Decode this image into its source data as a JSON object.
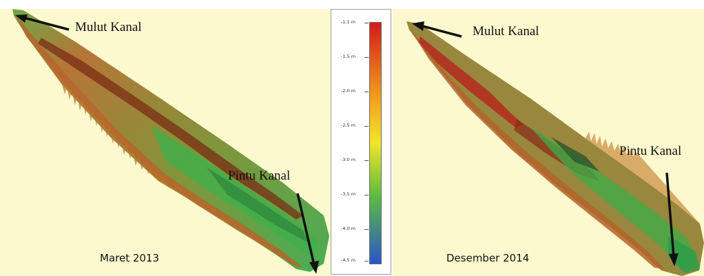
{
  "panels": {
    "left": {
      "mouth_label": "Mulut Kanal",
      "gate_label": "Pintu Kanal",
      "date_label": "Maret 2013"
    },
    "right": {
      "mouth_label": "Mulut Kanal",
      "gate_label": "Pintu Kanal",
      "date_label": "Desember 2014"
    }
  },
  "colorbar": {
    "ticks": [
      "-1.1 m",
      "-1.5 m",
      "-2.0 m",
      "-2.5 m",
      "-3.0 m",
      "-3.5 m",
      "-4.0 m",
      "-4.5 m"
    ],
    "colors": {
      "shallow": "#d21a1a",
      "mid_orange": "#f39a1e",
      "mid_yellow": "#f2e629",
      "mid_green": "#5dbb3f",
      "deep": "#2a55c9"
    }
  },
  "background_color": "#fdf9cf"
}
